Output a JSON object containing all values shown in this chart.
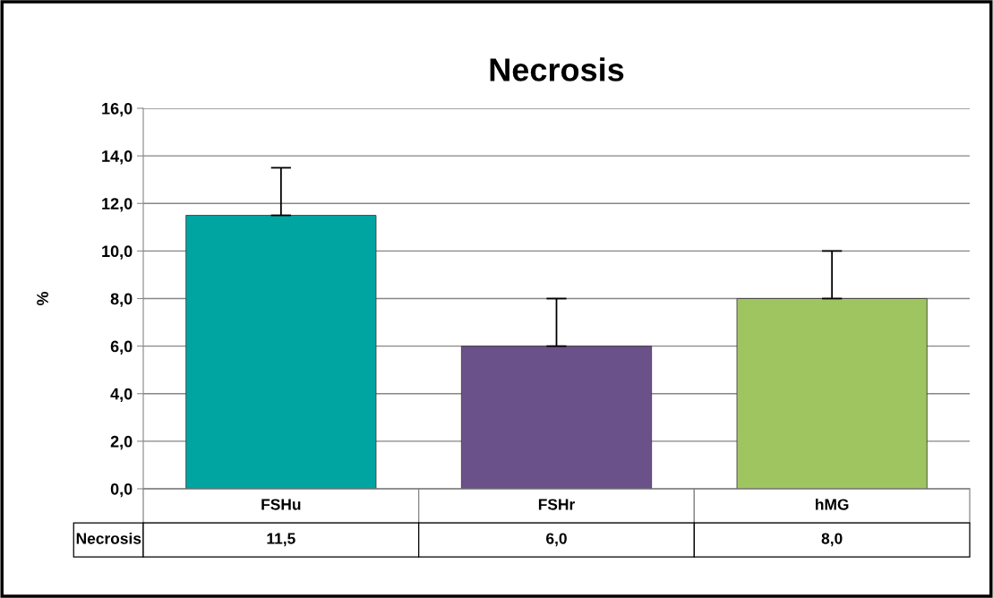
{
  "chart_data": {
    "type": "bar",
    "title": "Necrosis",
    "ylabel": "%",
    "categories": [
      "FSHu",
      "FSHr",
      "hMG"
    ],
    "series": [
      {
        "name": "Necrosis",
        "values": [
          11.5,
          6.0,
          8.0
        ],
        "colors": [
          "#00a5a2",
          "#6a5189",
          "#9fc560"
        ],
        "errors": [
          [
            11.5,
            13.5
          ],
          [
            6.0,
            8.0
          ],
          [
            8.0,
            10.0
          ]
        ],
        "value_labels": [
          "11,5",
          "6,0",
          "8,0"
        ]
      }
    ],
    "ylim": [
      0,
      16
    ],
    "yticks": [
      {
        "value": 0,
        "label": "0,0"
      },
      {
        "value": 2,
        "label": "2,0"
      },
      {
        "value": 4,
        "label": "4,0"
      },
      {
        "value": 6,
        "label": "6,0"
      },
      {
        "value": 8,
        "label": "8,0"
      },
      {
        "value": 10,
        "label": "10,0"
      },
      {
        "value": 12,
        "label": "12,0"
      },
      {
        "value": 14,
        "label": "14,0"
      },
      {
        "value": 16,
        "label": "16,0"
      }
    ],
    "grid": "y",
    "legend": false
  }
}
